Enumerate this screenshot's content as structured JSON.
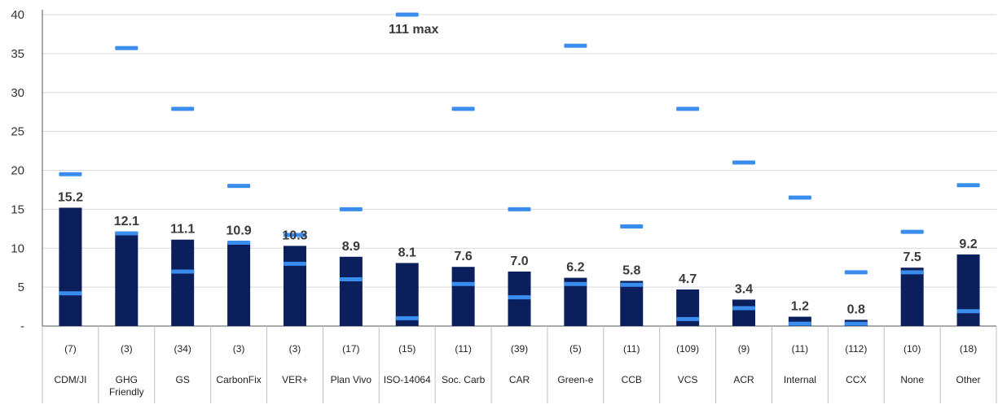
{
  "chart_data": {
    "type": "bar",
    "ylim": [
      0,
      40
    ],
    "yticks": [
      0,
      5,
      10,
      15,
      20,
      25,
      30,
      35,
      40
    ],
    "ytick_labels": [
      "-",
      "5",
      "10",
      "15",
      "20",
      "25",
      "30",
      "35",
      "40"
    ],
    "grid": true,
    "categories": [
      "CDM/JI",
      "GHG Friendly",
      "GS",
      "CarbonFix",
      "VER+",
      "Plan Vivo",
      "ISO-14064",
      "Soc. Carb",
      "CAR",
      "Green-e",
      "CCB",
      "VCS",
      "ACR",
      "Internal",
      "CCX",
      "None",
      "Other"
    ],
    "counts": [
      "(7)",
      "(3)",
      "(34)",
      "(3)",
      "(3)",
      "(17)",
      "(15)",
      "(11)",
      "(39)",
      "(5)",
      "(11)",
      "(109)",
      "(9)",
      "(11)",
      "(112)",
      "(10)",
      "(18)"
    ],
    "values": [
      15.2,
      12.1,
      11.1,
      10.9,
      10.3,
      8.9,
      8.1,
      7.6,
      7.0,
      6.2,
      5.8,
      4.7,
      3.4,
      1.2,
      0.8,
      7.5,
      9.2
    ],
    "value_labels": [
      "15.2",
      "12.1",
      "11.1",
      "10.9",
      "10.3",
      "8.9",
      "8.1",
      "7.6",
      "7.0",
      "6.2",
      "5.8",
      "4.7",
      "3.4",
      "1.2",
      "0.8",
      "7.5",
      "9.2"
    ],
    "max_markers": [
      19.5,
      35.7,
      27.9,
      18.0,
      11.7,
      15.0,
      40.0,
      27.9,
      15.0,
      36.0,
      12.8,
      27.9,
      21.0,
      16.5,
      6.9,
      12.1,
      18.1
    ],
    "min_markers": [
      4.2,
      11.9,
      7.0,
      10.7,
      8.0,
      6.0,
      1.0,
      5.4,
      3.7,
      5.4,
      5.3,
      0.9,
      2.3,
      0.3,
      0.3,
      6.9,
      1.9
    ],
    "annotation": "111 max",
    "colors": {
      "bar": "#0b1f5c",
      "marker": "#3b8ded",
      "grid": "#d9d9d9",
      "axis": "#555555",
      "table_border": "#bfbfbf"
    }
  }
}
